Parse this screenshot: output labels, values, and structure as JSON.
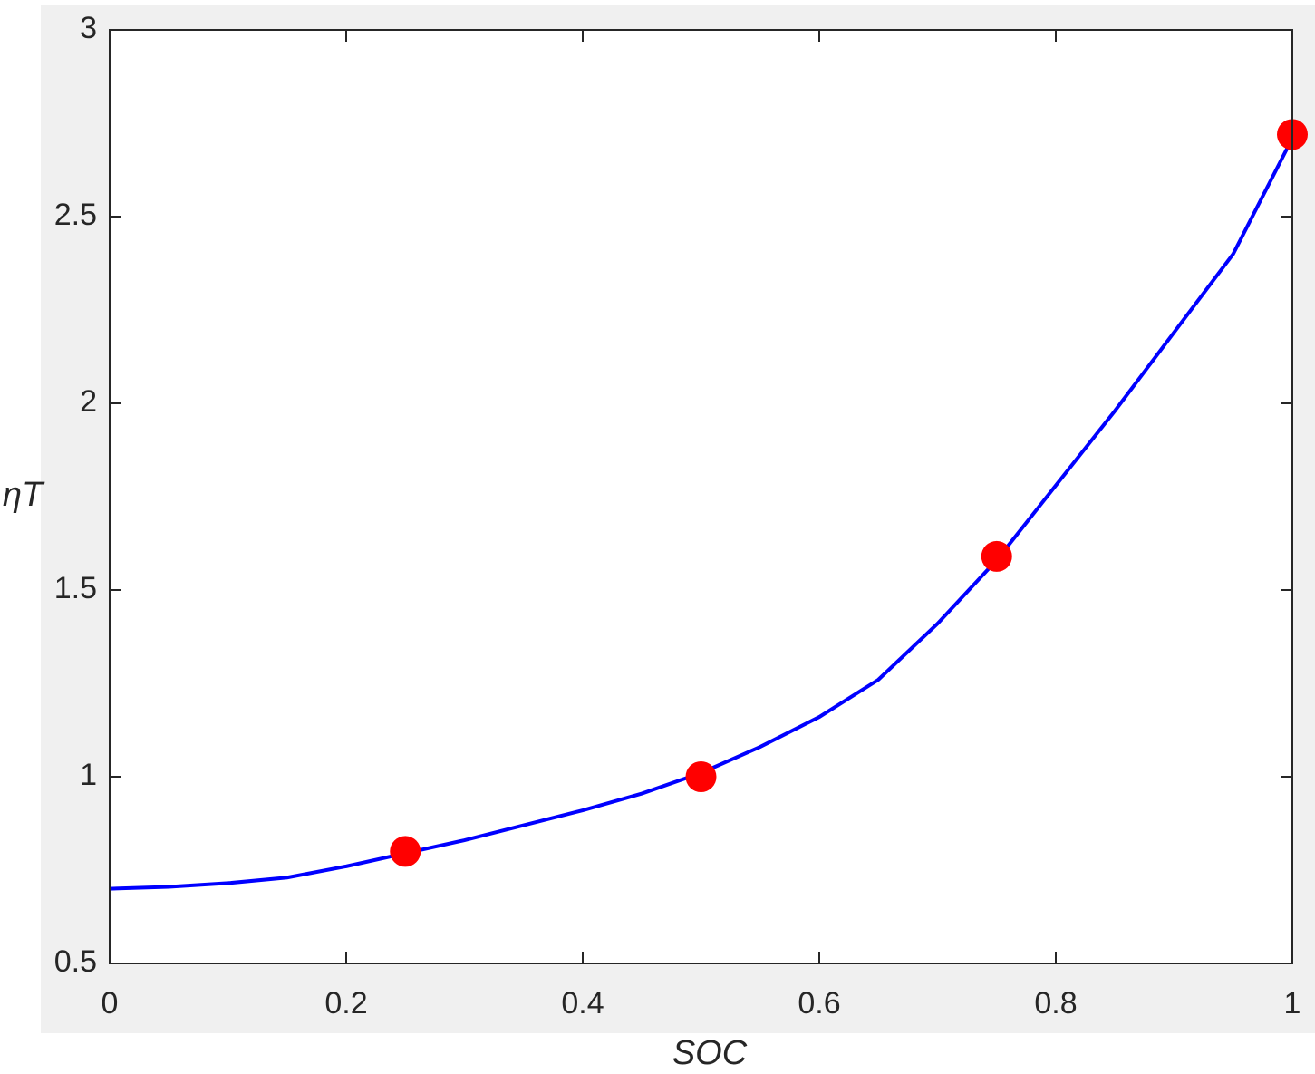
{
  "chart_data": {
    "type": "line",
    "xlabel": "SOC",
    "ylabel": "ηT",
    "xlim": [
      0,
      1
    ],
    "ylim": [
      0.5,
      3
    ],
    "xticks": [
      0,
      0.2,
      0.4,
      0.6,
      0.8,
      1
    ],
    "yticks": [
      0.5,
      1,
      1.5,
      2,
      2.5,
      3
    ],
    "grid": false,
    "series": [
      {
        "type": "line",
        "color": "#0000ff",
        "x": [
          0,
          0.05,
          0.1,
          0.15,
          0.2,
          0.25,
          0.3,
          0.35,
          0.4,
          0.45,
          0.5,
          0.55,
          0.6,
          0.65,
          0.7,
          0.75,
          0.8,
          0.85,
          0.9,
          0.95,
          1
        ],
        "values": [
          0.7,
          0.705,
          0.715,
          0.73,
          0.76,
          0.795,
          0.83,
          0.87,
          0.91,
          0.955,
          1.01,
          1.08,
          1.16,
          1.26,
          1.41,
          1.58,
          1.78,
          1.98,
          2.19,
          2.4,
          2.71
        ]
      },
      {
        "type": "scatter",
        "color": "#ff0000",
        "x": [
          0.25,
          0.5,
          0.75,
          1
        ],
        "values": [
          0.8,
          1.0,
          1.59,
          2.72
        ]
      }
    ]
  }
}
